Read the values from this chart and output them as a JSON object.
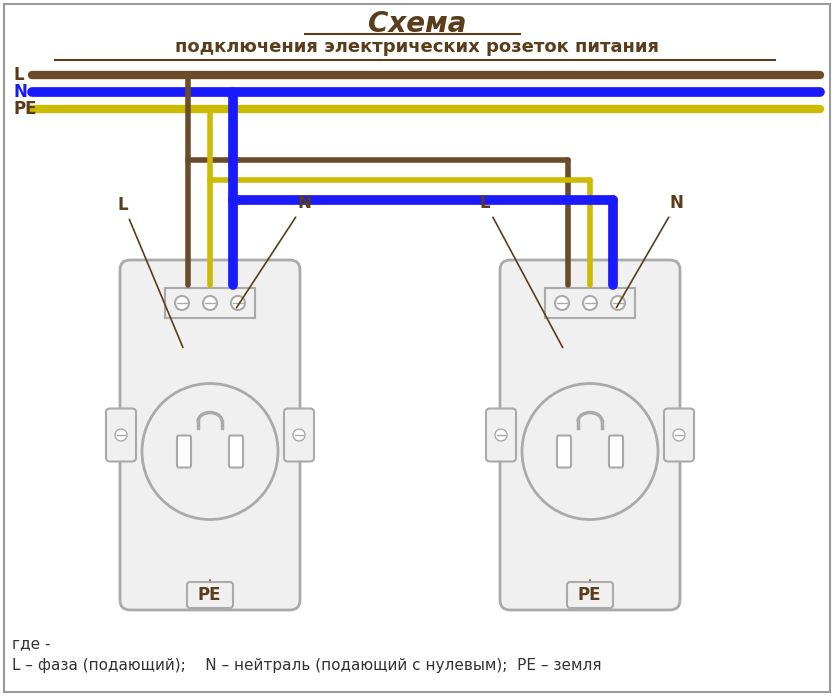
{
  "title_line1": "Схема",
  "title_line2": "подключения электрических розеток питания",
  "bg_color": "#ffffff",
  "wire_L_color": "#6B4C2A",
  "wire_N_color": "#1a1aff",
  "wire_PE_color": "#ccbb00",
  "label_color": "#5a3e1b",
  "socket_color": "#aaaaaa",
  "socket_fill": "#f0f0f0",
  "footer_text": "где -",
  "legend_text": "L – фаза (подающий);    N – нейтраль (подающий с нулевым);  PE – земля",
  "figsize": [
    8.34,
    6.96
  ],
  "dpi": 100
}
